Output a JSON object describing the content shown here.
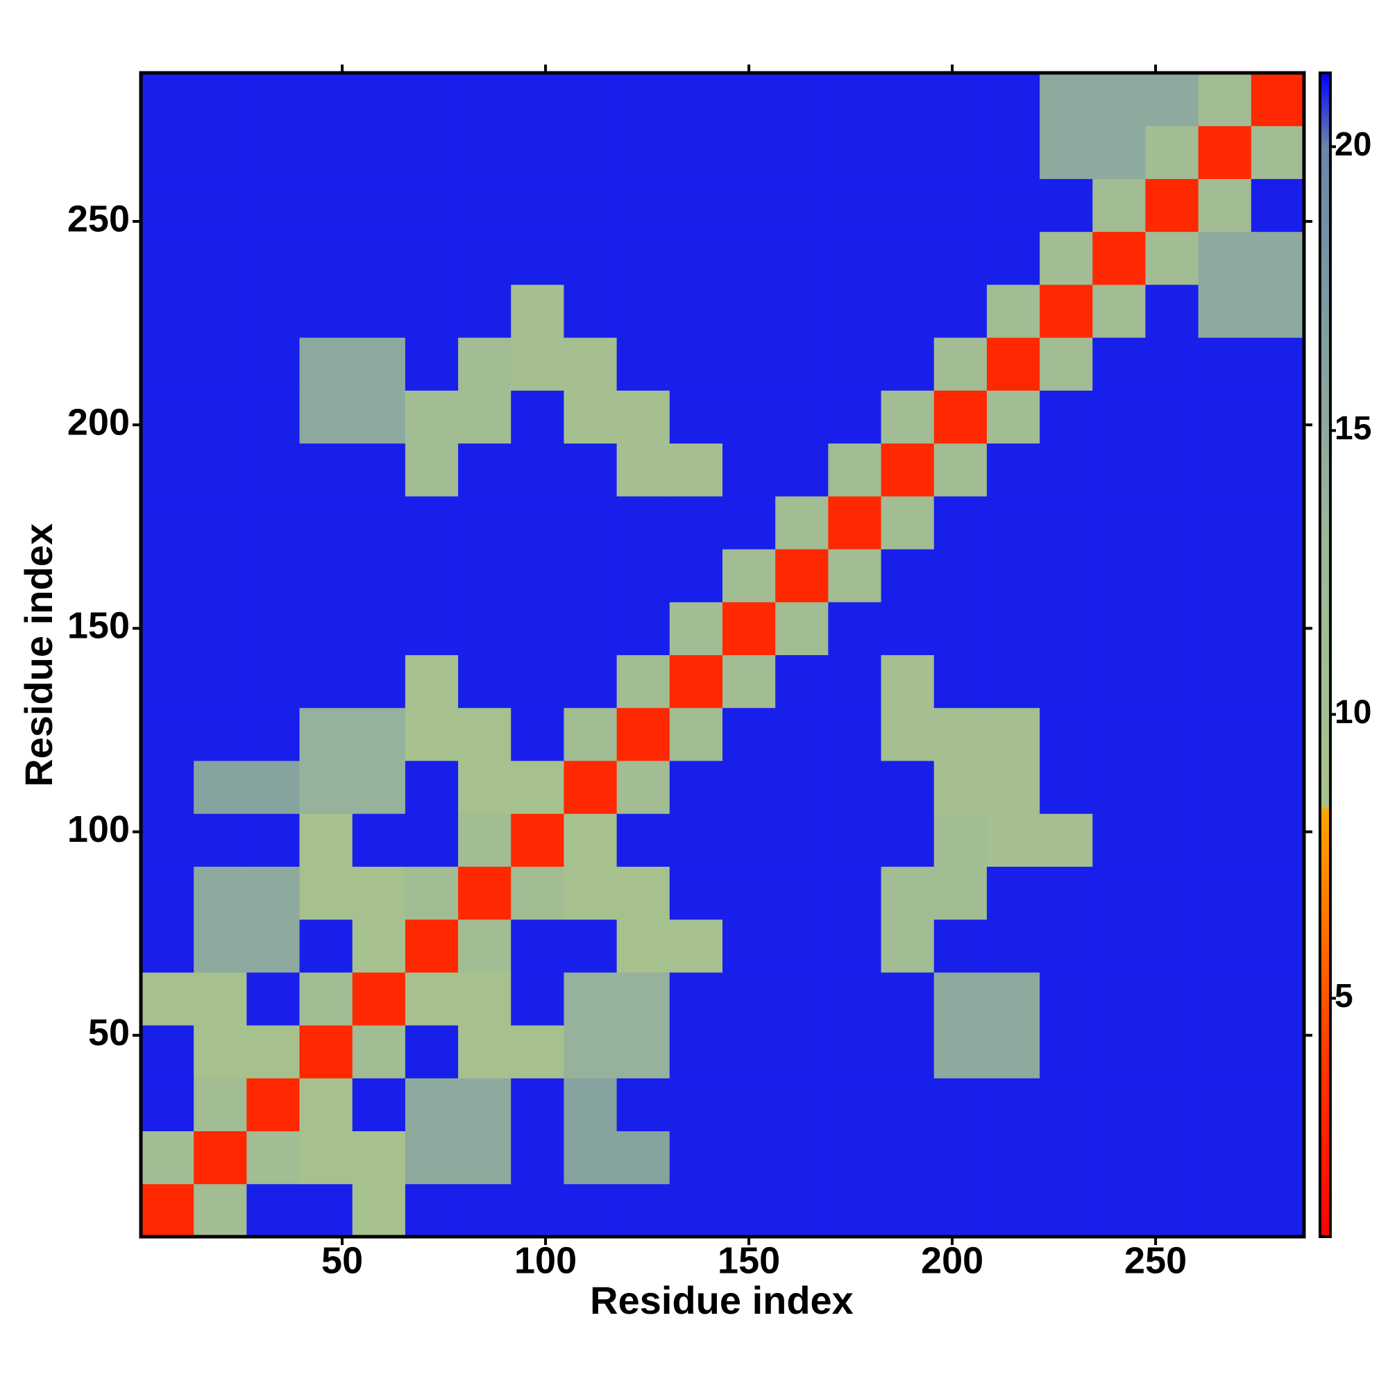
{
  "chart_data": {
    "type": "heatmap",
    "x_label": "Residue index",
    "y_label": "Residue index",
    "bins": [
      0.5,
      13.5,
      26.5,
      39.5,
      52.5,
      65.5,
      78.5,
      91.5,
      104.5,
      117.5,
      130.5,
      143.5,
      156.5,
      169.5,
      182.5,
      195.5,
      208.5,
      221.5,
      234.5,
      247.5,
      260.5,
      273.5,
      286.5
    ],
    "xlim": [
      0.5,
      286.5
    ],
    "ylim": [
      0.5,
      286.5
    ],
    "xticks": [
      50,
      100,
      150,
      200,
      250
    ],
    "yticks": [
      50,
      100,
      150,
      200,
      250
    ],
    "clim": [
      0.8,
      21.3
    ],
    "cticks": [
      5,
      10,
      15,
      20
    ],
    "colorscale": [
      [
        0.8,
        "#ff0000"
      ],
      [
        4,
        "#ff3a00"
      ],
      [
        8.3,
        "#ffa500"
      ],
      [
        8.4,
        "#a9c28c"
      ],
      [
        13,
        "#9db89a"
      ],
      [
        20,
        "#6a86a8"
      ],
      [
        21.3,
        "#0000ff"
      ]
    ],
    "values": [
      [
        3,
        11,
        21,
        21,
        9,
        21,
        21,
        21,
        21,
        21,
        21,
        21,
        21,
        21,
        21,
        21,
        21,
        21,
        21,
        21,
        21,
        21
      ],
      [
        11,
        3,
        11,
        9,
        9,
        15,
        15,
        21,
        16,
        16,
        21,
        21,
        21,
        21,
        21,
        21,
        21,
        21,
        21,
        21,
        21,
        21
      ],
      [
        21,
        11,
        3,
        9,
        21,
        15,
        15,
        21,
        16,
        21,
        21,
        21,
        21,
        21,
        21,
        21,
        21,
        21,
        21,
        21,
        21,
        21
      ],
      [
        21,
        9,
        9,
        3,
        11,
        21,
        9,
        9,
        14,
        14,
        21,
        21,
        21,
        21,
        21,
        15,
        15,
        21,
        21,
        21,
        21,
        21
      ],
      [
        9,
        9,
        21,
        11,
        3,
        9,
        9,
        21,
        14,
        14,
        21,
        21,
        21,
        21,
        21,
        15,
        15,
        21,
        21,
        21,
        21,
        21
      ],
      [
        21,
        15,
        15,
        21,
        9,
        3,
        11,
        21,
        21,
        9,
        9,
        21,
        21,
        21,
        11,
        21,
        21,
        21,
        21,
        21,
        21,
        21
      ],
      [
        21,
        15,
        15,
        9,
        9,
        11,
        3,
        11,
        9,
        9,
        21,
        21,
        21,
        21,
        11,
        11,
        21,
        21,
        21,
        21,
        21,
        21
      ],
      [
        21,
        21,
        21,
        9,
        21,
        21,
        11,
        3,
        9,
        21,
        21,
        21,
        21,
        21,
        21,
        11,
        10,
        10,
        21,
        21,
        21,
        21
      ],
      [
        21,
        16,
        16,
        14,
        14,
        21,
        9,
        9,
        3,
        11,
        21,
        21,
        21,
        21,
        21,
        10,
        10,
        21,
        21,
        21,
        21,
        21
      ],
      [
        21,
        21,
        21,
        14,
        14,
        9,
        9,
        21,
        11,
        3,
        11,
        21,
        21,
        21,
        10,
        10,
        10,
        21,
        21,
        21,
        21,
        21
      ],
      [
        21,
        21,
        21,
        21,
        21,
        9,
        21,
        21,
        21,
        11,
        3,
        11,
        21,
        21,
        10,
        21,
        21,
        21,
        21,
        21,
        21,
        21
      ],
      [
        21,
        21,
        21,
        21,
        21,
        21,
        21,
        21,
        21,
        21,
        11,
        3,
        11,
        21,
        21,
        21,
        21,
        21,
        21,
        21,
        21,
        21
      ],
      [
        21,
        21,
        21,
        21,
        21,
        21,
        21,
        21,
        21,
        21,
        21,
        11,
        3,
        11,
        21,
        21,
        21,
        21,
        21,
        21,
        21,
        21
      ],
      [
        21,
        21,
        21,
        21,
        21,
        21,
        21,
        21,
        21,
        21,
        21,
        21,
        11,
        3,
        11,
        21,
        21,
        21,
        21,
        21,
        21,
        21
      ],
      [
        21,
        21,
        21,
        21,
        21,
        11,
        21,
        21,
        21,
        10,
        10,
        21,
        21,
        11,
        3,
        11,
        21,
        21,
        21,
        21,
        21,
        21
      ],
      [
        21,
        21,
        21,
        15,
        15,
        11,
        11,
        21,
        10,
        10,
        21,
        21,
        21,
        21,
        11,
        3,
        11,
        21,
        21,
        21,
        21,
        21
      ],
      [
        21,
        21,
        21,
        15,
        15,
        21,
        11,
        10,
        10,
        21,
        21,
        21,
        21,
        21,
        21,
        11,
        3,
        11,
        21,
        21,
        21,
        21
      ],
      [
        21,
        21,
        21,
        21,
        21,
        21,
        21,
        10,
        21,
        21,
        21,
        21,
        21,
        21,
        21,
        21,
        11,
        3,
        11,
        21,
        15,
        15
      ],
      [
        21,
        21,
        21,
        21,
        21,
        21,
        21,
        21,
        21,
        21,
        21,
        21,
        21,
        21,
        21,
        21,
        21,
        11,
        3,
        11,
        15,
        15
      ],
      [
        21,
        21,
        21,
        21,
        21,
        21,
        21,
        21,
        21,
        21,
        21,
        21,
        21,
        21,
        21,
        21,
        21,
        21,
        11,
        3,
        11,
        21
      ],
      [
        21,
        21,
        21,
        21,
        21,
        21,
        21,
        21,
        21,
        21,
        21,
        21,
        21,
        21,
        21,
        21,
        21,
        15,
        15,
        11,
        3,
        11
      ],
      [
        21,
        21,
        21,
        21,
        21,
        21,
        21,
        21,
        21,
        21,
        21,
        21,
        21,
        21,
        21,
        21,
        21,
        15,
        15,
        15,
        11,
        3
      ]
    ]
  }
}
